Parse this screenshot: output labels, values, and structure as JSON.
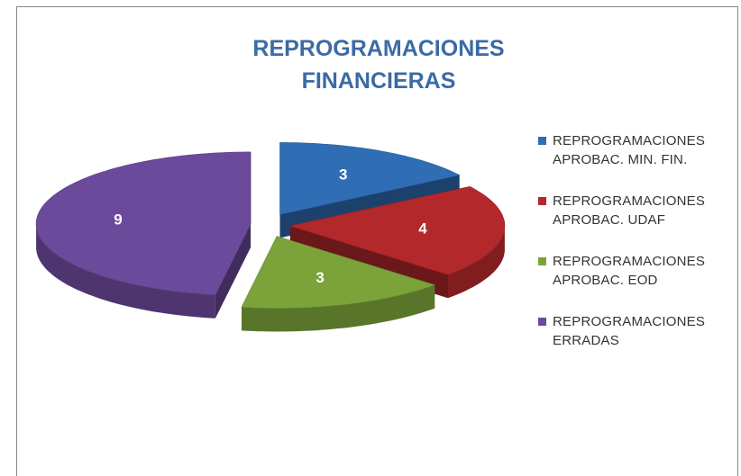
{
  "chart_data": {
    "type": "pie3d",
    "title": "REPROGRAMACIONES FINANCIERAS",
    "categories": [
      "REPROGRAMACIONES APROBAC. MIN. FIN.",
      "REPROGRAMACIONES APROBAC. UDAF",
      "REPROGRAMACIONES APROBAC. EOD",
      "REPROGRAMACIONES ERRADAS"
    ],
    "values": [
      3,
      4,
      3,
      9
    ],
    "colors": [
      "#2f6db5",
      "#b3282b",
      "#7ba33a",
      "#6c4a9b"
    ],
    "legend": "right"
  }
}
